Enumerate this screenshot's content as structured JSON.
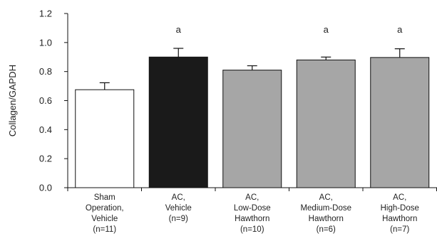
{
  "chart_data": {
    "type": "bar",
    "ylabel": "Collagen/GAPDH",
    "xlabel": "",
    "ylim": [
      0,
      1.2
    ],
    "yticks": [
      "0.0",
      "0.2",
      "0.4",
      "0.6",
      "0.8",
      "1.0",
      "1.2"
    ],
    "categories": [
      [
        "Sham",
        "Operation,",
        "Vehicle",
        "(n=11)"
      ],
      [
        "AC,",
        "Vehicle",
        "(n=9)"
      ],
      [
        "AC,",
        "Low-Dose",
        "Hawthorn",
        "(n=10)"
      ],
      [
        "AC,",
        "Medium-Dose",
        "Hawthorn",
        "(n=6)"
      ],
      [
        "AC,",
        "High-Dose",
        "Hawthorn",
        "(n=7)"
      ]
    ],
    "values": [
      0.675,
      0.9,
      0.81,
      0.88,
      0.897
    ],
    "errors": [
      0.048,
      0.06,
      0.03,
      0.02,
      0.06
    ],
    "annotations": [
      "",
      "a",
      "",
      "a",
      "a"
    ],
    "colors": {
      "bar_fills": [
        "#ffffff",
        "#1a1a1a",
        "#a6a6a6",
        "#a6a6a6",
        "#a6a6a6"
      ],
      "stroke": "#111111"
    }
  }
}
